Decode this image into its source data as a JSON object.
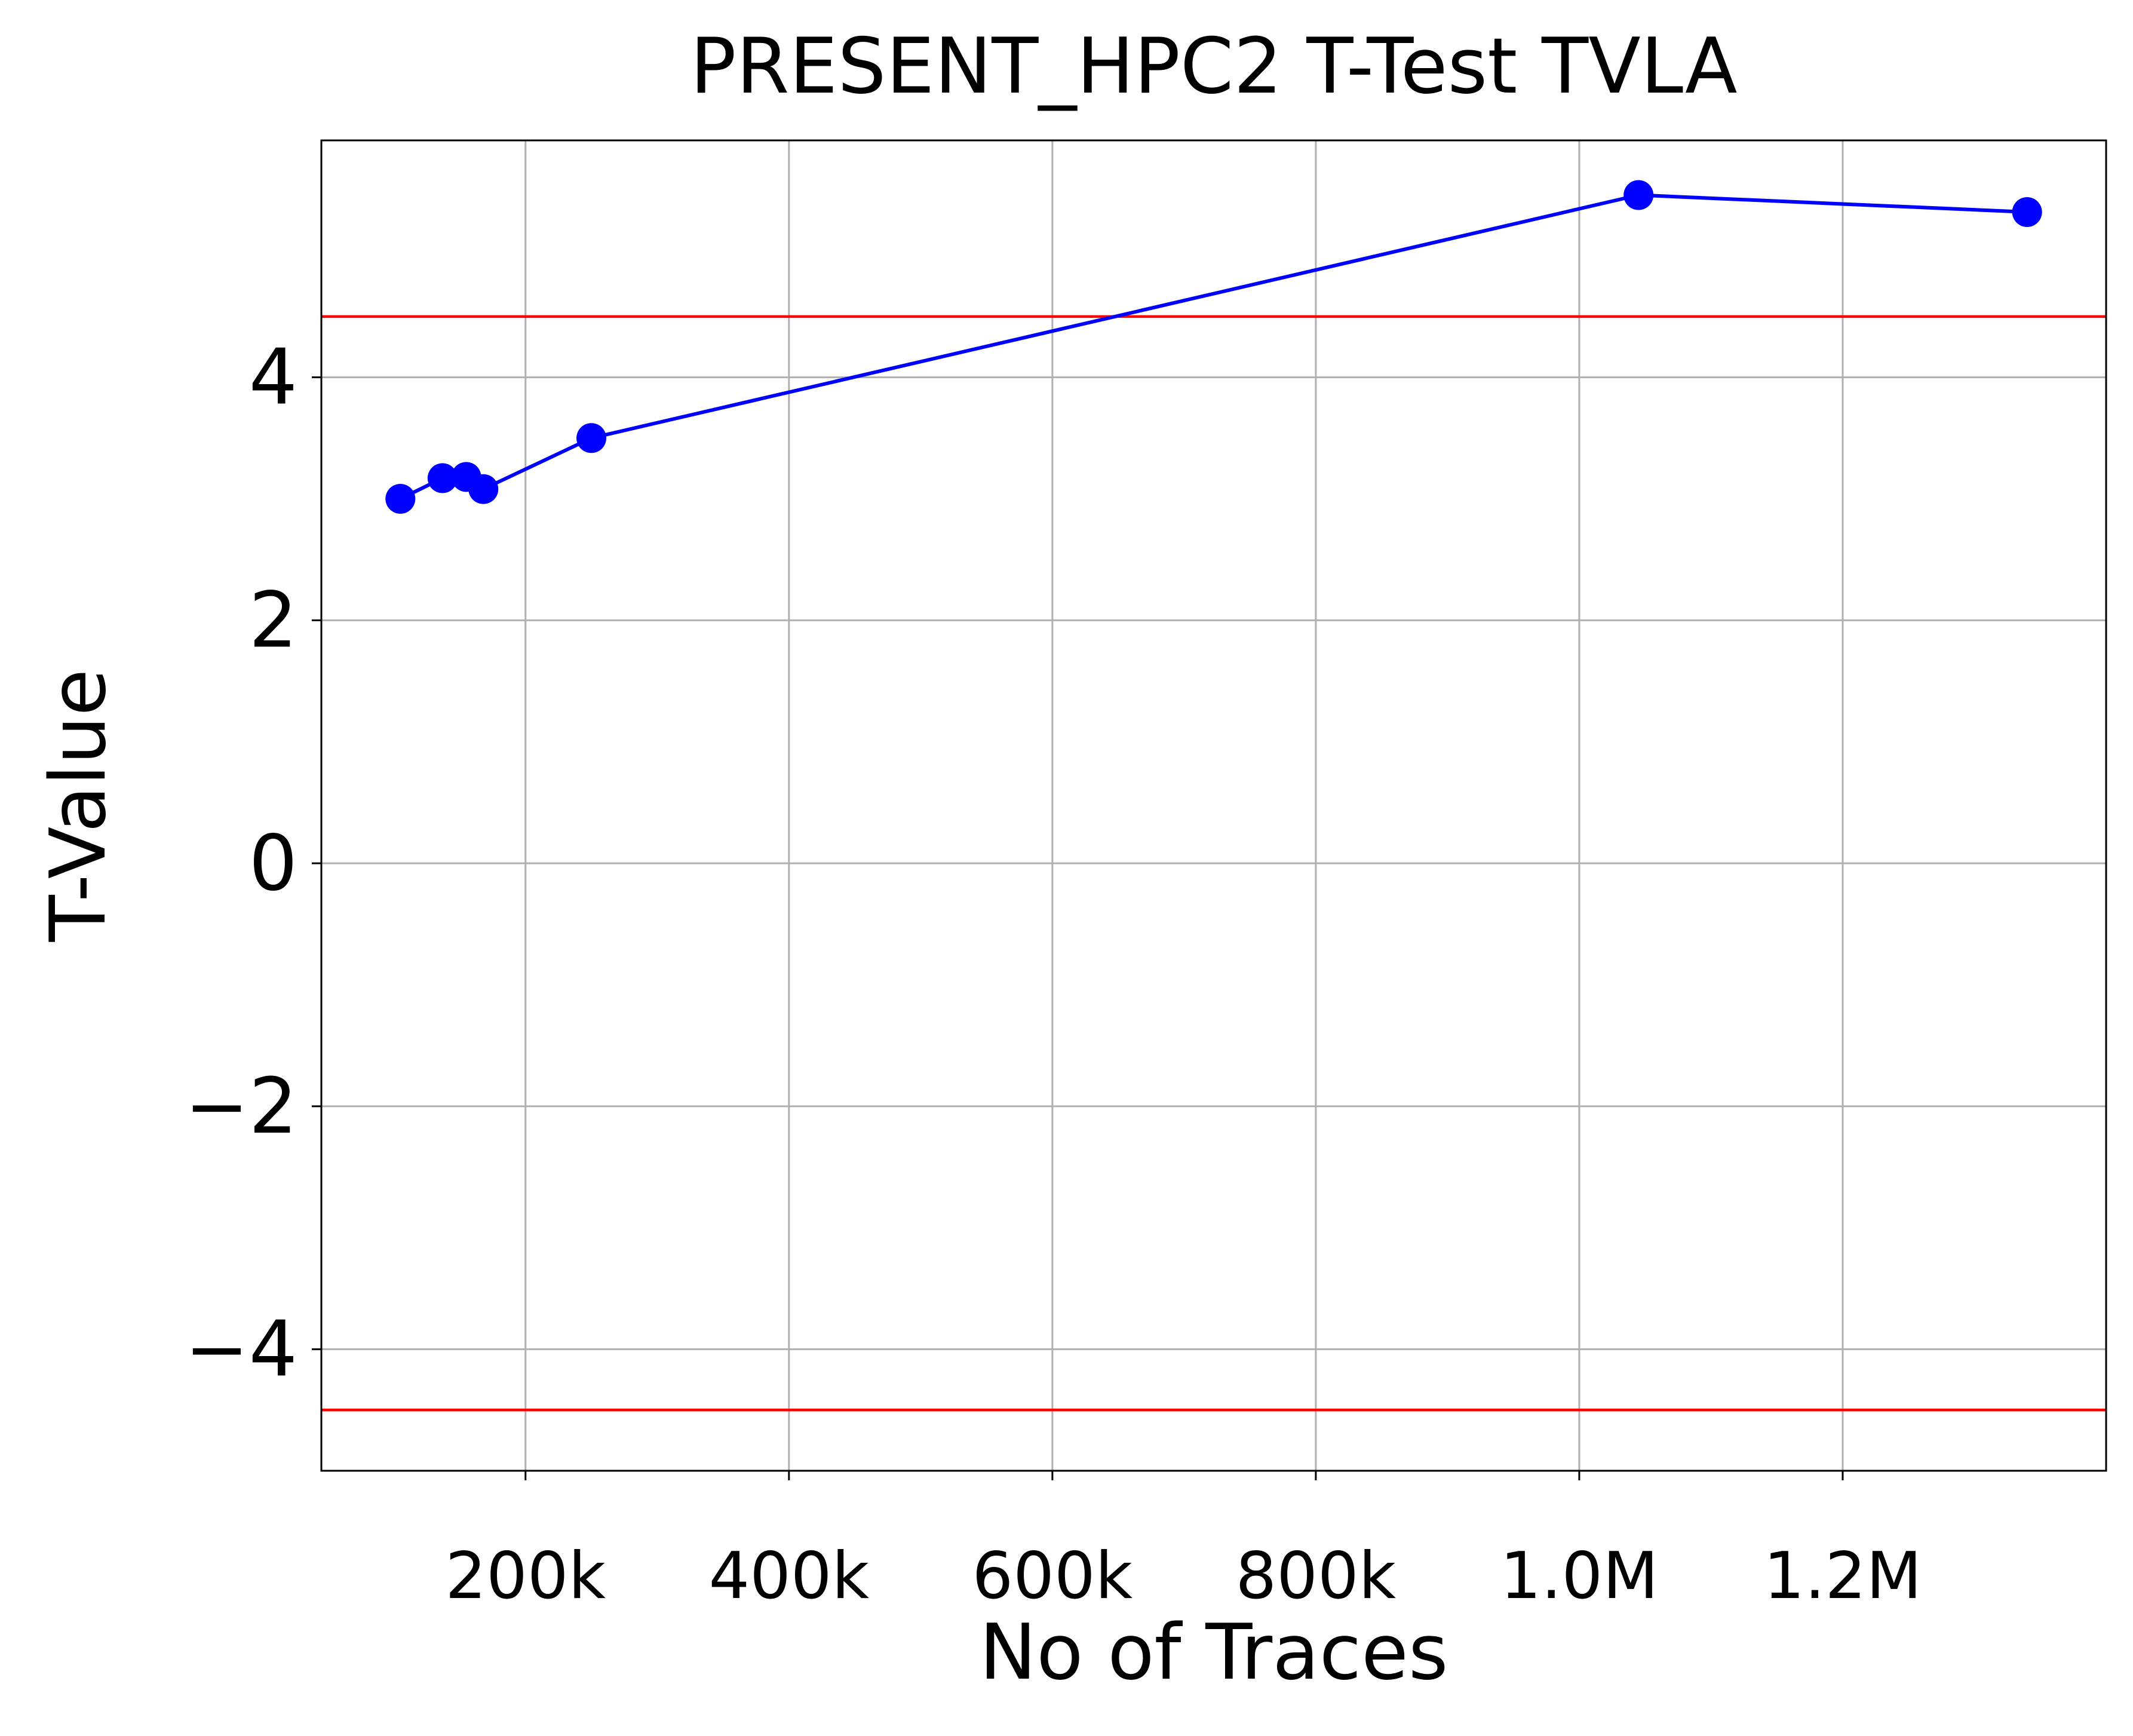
{
  "chart_data": {
    "type": "line",
    "title": "PRESENT_HPC2 T-Test TVLA",
    "xlabel": "No of Traces",
    "ylabel": "T-Value",
    "xlim": [
      45000,
      1400000
    ],
    "ylim": [
      -5,
      5.95
    ],
    "x_ticks": [
      {
        "value": 200000,
        "label": "200k"
      },
      {
        "value": 400000,
        "label": "400k"
      },
      {
        "value": 600000,
        "label": "600k"
      },
      {
        "value": 800000,
        "label": "800k"
      },
      {
        "value": 1000000,
        "label": "1.0M"
      },
      {
        "value": 1200000,
        "label": "1.2M"
      }
    ],
    "y_ticks": [
      {
        "value": -4,
        "label": "−4"
      },
      {
        "value": -2,
        "label": "−2"
      },
      {
        "value": 0,
        "label": "0"
      },
      {
        "value": 2,
        "label": "2"
      },
      {
        "value": 4,
        "label": "4"
      }
    ],
    "grid": true,
    "series": [
      {
        "color": "#0000ff",
        "marker": "circle",
        "x": [
          105000,
          137000,
          155000,
          168000,
          250000,
          1045000,
          1340000
        ],
        "y": [
          3.0,
          3.17,
          3.18,
          3.08,
          3.5,
          5.5,
          5.36
        ]
      }
    ],
    "reference_lines": [
      {
        "y": 4.5,
        "color": "#ff0000"
      },
      {
        "y": -4.5,
        "color": "#ff0000"
      }
    ]
  }
}
